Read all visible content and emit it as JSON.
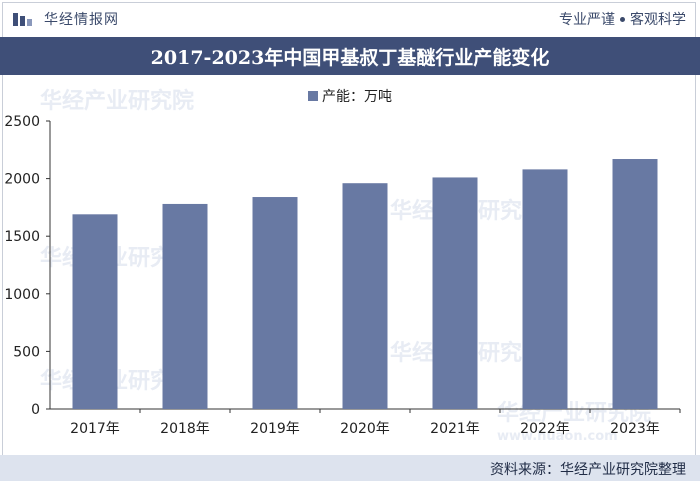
{
  "header": {
    "logo_text": "华经情报网",
    "tagline_left": "专业严谨",
    "tagline_right": "客观科学"
  },
  "title": "2017-2023年中国甲基叔丁基醚行业产能变化",
  "footer": {
    "source": "资料来源：华经产业研究院整理"
  },
  "watermark": "华经产业研究院",
  "watermark_url": "www.huaon.com",
  "colors": {
    "bar": "#6879a3",
    "title_bg": "#3f4f78",
    "footer_bg": "#dde3ee"
  },
  "chart_data": {
    "type": "bar",
    "title": "2017-2023年中国甲基叔丁基醚行业产能变化",
    "legend": [
      "产能：万吨"
    ],
    "legend_position": "top-center",
    "categories": [
      "2017年",
      "2018年",
      "2019年",
      "2020年",
      "2021年",
      "2022年",
      "2023年"
    ],
    "series": [
      {
        "name": "产能：万吨",
        "values": [
          1690,
          1780,
          1840,
          1960,
          2010,
          2080,
          2170
        ]
      }
    ],
    "ylim": [
      0,
      2500
    ],
    "yticks": [
      0,
      500,
      1000,
      1500,
      2000,
      2500
    ],
    "xlabel": "",
    "ylabel": "",
    "grid": false
  }
}
